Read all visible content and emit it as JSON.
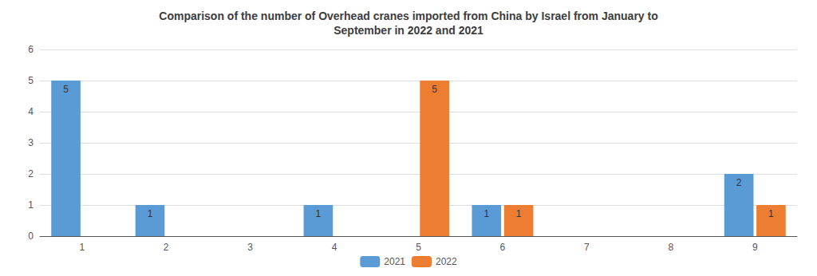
{
  "chart_data": {
    "type": "bar",
    "title": "Comparison of the number of Overhead cranes imported from China by Israel from January to\nSeptember in 2022 and 2021",
    "categories": [
      "1",
      "2",
      "3",
      "4",
      "5",
      "6",
      "7",
      "8",
      "9"
    ],
    "series": [
      {
        "name": "2021",
        "color": "#5B9BD5",
        "values": [
          5,
          1,
          0,
          1,
          0,
          1,
          0,
          0,
          2
        ]
      },
      {
        "name": "2022",
        "color": "#ED7D31",
        "values": [
          0,
          0,
          0,
          0,
          5,
          1,
          0,
          0,
          1
        ]
      }
    ],
    "ylim": [
      0,
      6
    ],
    "yticks": [
      0,
      1,
      2,
      3,
      4,
      5,
      6
    ],
    "grid": true,
    "legend": "bottom",
    "data_labels": true
  }
}
